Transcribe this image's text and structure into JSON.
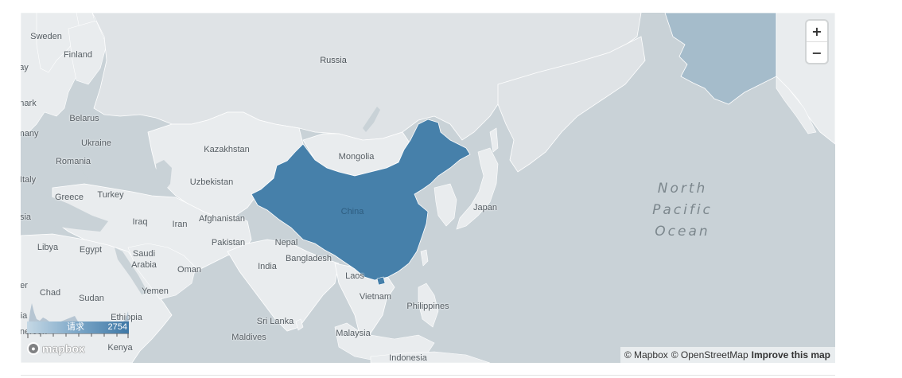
{
  "map": {
    "colors": {
      "ocean": "#c9d2d7",
      "land": "#e9ecee",
      "russia": "#dfe3e6",
      "highlight": "#4680aa",
      "alaska": "#a5bccb",
      "border": "#ffffff"
    },
    "labels": {
      "sweden": "Sweden",
      "finland": "Finland",
      "russia": "Russia",
      "belarus": "Belarus",
      "ukraine": "Ukraine",
      "romania": "Romania",
      "kazakhstan": "Kazakhstan",
      "mongolia": "Mongolia",
      "uzbekistan": "Uzbekistan",
      "greece": "Greece",
      "turkey": "Turkey",
      "italy": "Italy",
      "iraq": "Iraq",
      "iran": "Iran",
      "afghanistan": "Afghanistan",
      "china": "China",
      "japan": "Japan",
      "pakistan": "Pakistan",
      "nepal": "Nepal",
      "libya": "Libya",
      "egypt": "Egypt",
      "saudi_arabia_1": "Saudi",
      "saudi_arabia_2": "Arabia",
      "oman": "Oman",
      "india": "India",
      "bangladesh": "Bangladesh",
      "laos": "Laos",
      "chad": "Chad",
      "sudan": "Sudan",
      "yemen": "Yemen",
      "vietnam": "Vietnam",
      "philippines": "Philippines",
      "ethiopia": "Ethiopia",
      "sri_lanka": "Sri Lanka",
      "malaysia": "Malaysia",
      "maldives": "Maldives",
      "kenya": "Kenya",
      "indonesia": "Indonesia",
      "edge_ray": "ay",
      "edge_mark": "nark",
      "edge_many": "many",
      "edge_italy": "Italy",
      "edge_sia": "sia",
      "edge_er": "er",
      "edge_ia": "ia",
      "edge_neroon": "neroon"
    },
    "ocean_label": [
      "North",
      "Pacific",
      "Ocean"
    ]
  },
  "legend": {
    "label": "请求",
    "value": "2754"
  },
  "controls": {
    "zoom_in": "+",
    "zoom_out": "−"
  },
  "logo": {
    "text": "mapbox"
  },
  "attribution": {
    "mapbox": "© Mapbox",
    "osm": "© OpenStreetMap",
    "improve": "Improve this map"
  }
}
